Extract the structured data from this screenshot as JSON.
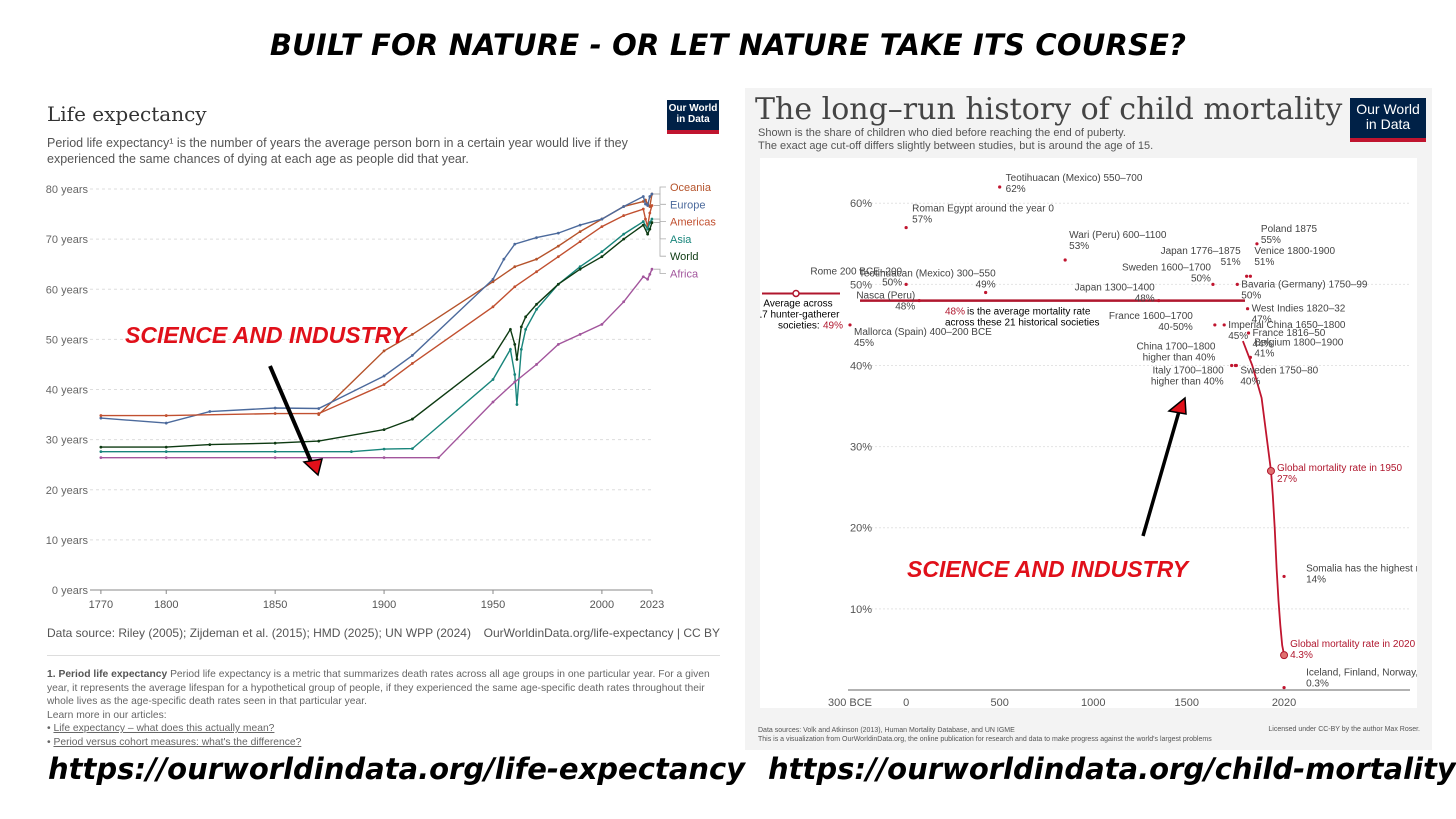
{
  "page_title": "BUILT FOR NATURE - OR LET NATURE TAKE ITS COURSE?",
  "left": {
    "title": "Life expectancy",
    "subtitle": "Period life expectancy¹ is the number of years the average person born in a certain year would live if they experienced the same chances of dying at each age as people did that year.",
    "logo_text": "Our World in Data",
    "annotation": "SCIENCE AND INDUSTRY",
    "source": "Data source: Riley (2005); Zijdeman et al. (2015); HMD (2025); UN WPP (2024)",
    "url": "OurWorldinData.org/life-expectancy | CC BY",
    "note_bold": "1. Period life expectancy",
    "note_text": "Period life expectancy is a metric that summarizes death rates across all age groups in one particular year. For a given year, it represents the average lifespan for a hypothetical group of people, if they experienced the same age-specific death rates throughout their whole lives as the age-specific death rates seen in that particular year.",
    "note_learn": "Learn more in our articles:",
    "note_link1": "Life expectancy – what does this actually mean?",
    "note_link2": "Period versus cohort measures: what's the difference?",
    "link": "https://ourworldindata.org/life-expectancy"
  },
  "right": {
    "title": "The long–run history of child mortality",
    "subtitle1": "Shown is the share of children who died before reaching the end of puberty.",
    "subtitle2": "The exact age cut-off differs slightly between studies, but is around the age of 15.",
    "logo_text": "Our World in Data",
    "annotation": "SCIENCE AND INDUSTRY",
    "footer1": "Data sources: Volk and Atkinson (2013), Human Mortality Database, and UN IGME",
    "footer2": "This is a visualization from OurWorldinData.org, the online publication for research and data to make progress against the world's largest problems",
    "license": "Licensed under CC-BY by the author Max Roser.",
    "link": "https://ourworldindata.org/child-mortality"
  },
  "chart_data": [
    {
      "type": "line",
      "title": "Life expectancy",
      "ylim": [
        0,
        80
      ],
      "xlim": [
        1765,
        2023
      ],
      "y_ticks": [
        "0 years",
        "10 years",
        "20 years",
        "30 years",
        "40 years",
        "50 years",
        "60 years",
        "70 years",
        "80 years"
      ],
      "x_ticks": [
        "1770",
        "1800",
        "1850",
        "1900",
        "1950",
        "2000",
        "2023"
      ],
      "grid": true,
      "legend": "right",
      "series": [
        {
          "name": "Oceania",
          "color": "#a2559c",
          "points": []
        },
        {
          "name": "Oceania",
          "color": "#b5532b",
          "points": [
            [
              1870,
              35
            ],
            [
              1900,
              47.7
            ],
            [
              1913,
              51
            ],
            [
              1950,
              61.5
            ],
            [
              1960,
              64.5
            ],
            [
              1970,
              66
            ],
            [
              1980,
              68.6
            ],
            [
              1990,
              71.5
            ],
            [
              2000,
              74
            ],
            [
              2010,
              76.5
            ],
            [
              2019,
              77.5
            ],
            [
              2020,
              77.8
            ],
            [
              2021,
              77
            ],
            [
              2022,
              76.5
            ],
            [
              2023,
              79
            ]
          ]
        },
        {
          "name": "Europe",
          "color": "#4c6a9c",
          "points": [
            [
              1770,
              34.3
            ],
            [
              1800,
              33.3
            ],
            [
              1820,
              35.6
            ],
            [
              1850,
              36.3
            ],
            [
              1870,
              36.2
            ],
            [
              1900,
              42.7
            ],
            [
              1913,
              46.8
            ],
            [
              1950,
              62
            ],
            [
              1955,
              66
            ],
            [
              1960,
              69
            ],
            [
              1970,
              70.3
            ],
            [
              1980,
              71.2
            ],
            [
              1990,
              72.8
            ],
            [
              2000,
              74
            ],
            [
              2010,
              76.5
            ],
            [
              2019,
              78.5
            ],
            [
              2020,
              77
            ],
            [
              2021,
              76.7
            ],
            [
              2022,
              78.5
            ],
            [
              2023,
              79
            ]
          ]
        },
        {
          "name": "Americas",
          "color": "#c15030",
          "points": [
            [
              1770,
              34.8
            ],
            [
              1800,
              34.8
            ],
            [
              1850,
              35.2
            ],
            [
              1870,
              35.2
            ],
            [
              1900,
              41
            ],
            [
              1913,
              45.2
            ],
            [
              1950,
              56.5
            ],
            [
              1960,
              60.5
            ],
            [
              1970,
              63.5
            ],
            [
              1980,
              66.5
            ],
            [
              1990,
              69.5
            ],
            [
              2000,
              72.5
            ],
            [
              2010,
              74.7
            ],
            [
              2019,
              76
            ],
            [
              2020,
              74
            ],
            [
              2021,
              72.5
            ],
            [
              2022,
              75.2
            ],
            [
              2023,
              76.7
            ]
          ]
        },
        {
          "name": "Asia",
          "color": "#18857b",
          "points": [
            [
              1770,
              27.6
            ],
            [
              1800,
              27.6
            ],
            [
              1850,
              27.6
            ],
            [
              1885,
              27.6
            ],
            [
              1900,
              28.1
            ],
            [
              1913,
              28.2
            ],
            [
              1950,
              42
            ],
            [
              1958,
              48
            ],
            [
              1960,
              43
            ],
            [
              1961,
              37
            ],
            [
              1963,
              48
            ],
            [
              1965,
              52
            ],
            [
              1970,
              56
            ],
            [
              1980,
              61
            ],
            [
              1990,
              64.5
            ],
            [
              2000,
              67.5
            ],
            [
              2010,
              71
            ],
            [
              2019,
              73.5
            ],
            [
              2021,
              72
            ],
            [
              2022,
              73.3
            ],
            [
              2023,
              74
            ]
          ]
        },
        {
          "name": "World",
          "color": "#0d3a12",
          "points": [
            [
              1770,
              28.5
            ],
            [
              1800,
              28.5
            ],
            [
              1820,
              29
            ],
            [
              1850,
              29.3
            ],
            [
              1870,
              29.7
            ],
            [
              1900,
              32
            ],
            [
              1913,
              34.1
            ],
            [
              1950,
              46.5
            ],
            [
              1958,
              52
            ],
            [
              1960,
              49
            ],
            [
              1961,
              46
            ],
            [
              1963,
              52.5
            ],
            [
              1965,
              54.5
            ],
            [
              1970,
              57
            ],
            [
              1980,
              61
            ],
            [
              1990,
              64
            ],
            [
              2000,
              66.5
            ],
            [
              2010,
              70
            ],
            [
              2019,
              72.8
            ],
            [
              2021,
              71
            ],
            [
              2022,
              72
            ],
            [
              2023,
              73.3
            ]
          ]
        },
        {
          "name": "Africa",
          "color": "#a2559c",
          "points": [
            [
              1770,
              26.4
            ],
            [
              1800,
              26.4
            ],
            [
              1850,
              26.4
            ],
            [
              1900,
              26.4
            ],
            [
              1925,
              26.4
            ],
            [
              1950,
              37.5
            ],
            [
              1960,
              41.5
            ],
            [
              1970,
              45
            ],
            [
              1980,
              49
            ],
            [
              1990,
              51
            ],
            [
              2000,
              53
            ],
            [
              2010,
              57.5
            ],
            [
              2019,
              62.5
            ],
            [
              2021,
              62
            ],
            [
              2022,
              63
            ],
            [
              2023,
              64
            ]
          ]
        }
      ]
    },
    {
      "type": "scatter",
      "title": "The long–run history of child mortality",
      "ylim": [
        0,
        62
      ],
      "xlim": [
        -300,
        2025
      ],
      "y_ticks": [
        "10%",
        "20%",
        "30%",
        "40%",
        "50%",
        "60%"
      ],
      "x_ticks": [
        "300 BCE",
        "0",
        "500",
        "1000",
        "1500",
        "2020"
      ],
      "average_line": {
        "value": 48,
        "label_value": "48%",
        "label": "is the average mortality rate across these 21 historical societies"
      },
      "hunter_gatherer": {
        "value": 49,
        "label": "Average across 17 hunter-gatherer societies:",
        "value_label": "49%"
      },
      "annotations": [
        {
          "x": 500,
          "y": 62,
          "label": "Teotihuacan (Mexico) 550–700",
          "value": "62%"
        },
        {
          "x": 0,
          "y": 57,
          "label": "Roman Egypt around the year 0",
          "value": "57%"
        },
        {
          "x": 850,
          "y": 53,
          "label": "Wari (Peru) 600–1100",
          "value": "53%"
        },
        {
          "x": 425,
          "y": 49,
          "label": "Teotihuacan (Mexico) 300–550",
          "value": "49%"
        },
        {
          "x": 0,
          "y": 50,
          "label": "Rome 200 BCE–200",
          "value": "50%"
        },
        {
          "x": 70,
          "y": 48,
          "label": "Nasca (Peru)",
          "value": "48%"
        },
        {
          "x": -300,
          "y": 45,
          "label": "Mallorca (Spain) 400–200 BCE",
          "value": "45%"
        },
        {
          "x": 1350,
          "y": 48,
          "label": "Japan 1300–1400",
          "value": "48%"
        },
        {
          "x": 1640,
          "y": 50,
          "label": "Sweden 1600–1700",
          "value": "50%"
        },
        {
          "x": 1820,
          "y": 51,
          "label": "Japan 1776–1875",
          "value": "51%"
        },
        {
          "x": 1840,
          "y": 51,
          "label": "Venice 1800-1900",
          "value": "51%"
        },
        {
          "x": 1875,
          "y": 55,
          "label": "Poland 1875",
          "value": "55%"
        },
        {
          "x": 1770,
          "y": 50,
          "label": "Bavaria (Germany) 1750–99",
          "value": "50%"
        },
        {
          "x": 1825,
          "y": 47,
          "label": "West Indies 1820–32",
          "value": "47%"
        },
        {
          "x": 1650,
          "y": 45,
          "label": "France 1600–1700",
          "value": "40-50%"
        },
        {
          "x": 1700,
          "y": 45,
          "label": "Imperial China 1650–1800",
          "value": "45%"
        },
        {
          "x": 1830,
          "y": 44,
          "label": "France 1816–50",
          "value": "44%"
        },
        {
          "x": 1760,
          "y": 40,
          "label": "China 1700–1800",
          "value": "higher than 40%"
        },
        {
          "x": 1740,
          "y": 40,
          "label": "Italy 1700–1800",
          "value": "higher than 40%"
        },
        {
          "x": 1840,
          "y": 41,
          "label": "Belgium 1800–1900",
          "value": "41%"
        },
        {
          "x": 1765,
          "y": 40,
          "label": "Sweden 1750–80",
          "value": "40%"
        },
        {
          "x": 1950,
          "y": 27,
          "label": "Global mortality rate in 1950",
          "value": "27%"
        },
        {
          "x": 2020,
          "y": 14,
          "label": "Somalia has the highest mortality rate in the world.",
          "value": "14%"
        },
        {
          "x": 2020,
          "y": 4.3,
          "label": "Global mortality rate in 2020",
          "value": "4.3%"
        },
        {
          "x": 2020,
          "y": 0.3,
          "label": "Iceland, Finland, Norway, Japan, and Slovenia have the lowest mortality rates.",
          "value": "0.3%"
        }
      ],
      "global_series": [
        [
          1800,
          43
        ],
        [
          1850,
          40
        ],
        [
          1900,
          36
        ],
        [
          1950,
          27
        ],
        [
          1960,
          24
        ],
        [
          1970,
          20
        ],
        [
          1980,
          15
        ],
        [
          1990,
          11
        ],
        [
          2000,
          8
        ],
        [
          2010,
          5.5
        ],
        [
          2020,
          4.3
        ]
      ]
    }
  ]
}
